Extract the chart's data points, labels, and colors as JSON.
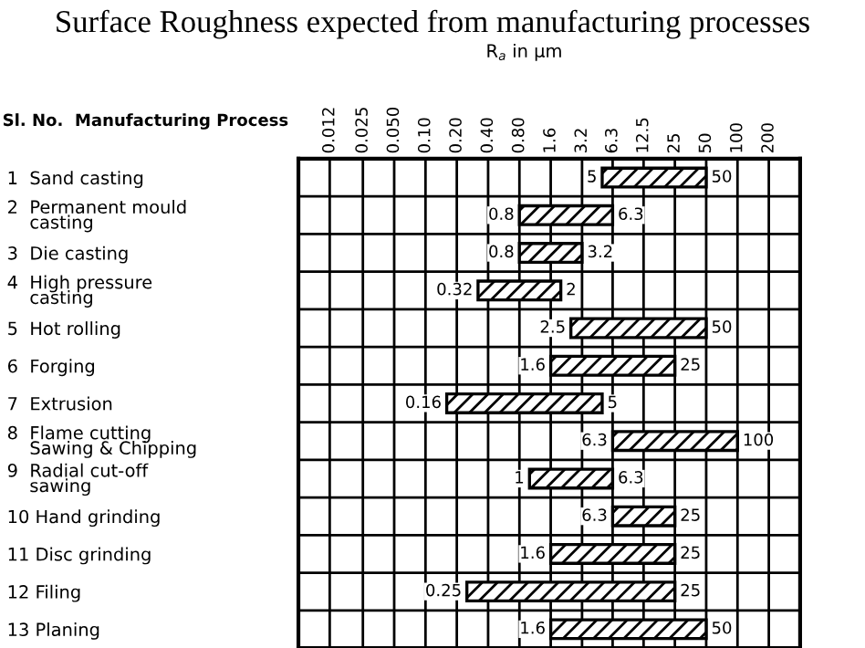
{
  "chart_data": {
    "type": "bar",
    "orientation": "horizontal",
    "title": "Surface Roughness expected from manufacturing processes",
    "ylabel": "Sl. No.  Manufacturing Process",
    "categories": [
      "1  Sand casting",
      "2  Permanent mould\n    casting",
      "3  Die casting",
      "4  High pressure\n    casting",
      "5  Hot rolling",
      "6  Forging",
      "7  Extrusion",
      "8  Flame cutting\n    Sawing & Chipping",
      "9  Radial cut-off\n    sawing",
      "10 Hand grinding",
      "11 Disc grinding",
      "12 Filing",
      "13 Planing"
    ],
    "base": [
      5,
      0.8,
      0.8,
      0.32,
      2.5,
      1.6,
      0.16,
      6.3,
      1,
      6.3,
      1.6,
      0.25,
      1.6
    ],
    "values": [
      45,
      5.5,
      2.4,
      1.68,
      47.5,
      23.4,
      4.84,
      93.7,
      5.3,
      18.7,
      23.4,
      24.75,
      48.4
    ],
    "color": "#000000",
    "log": "x",
    "xlim": [
      0.006,
      400
    ],
    "xticks": [
      0.012,
      0.025,
      {
        "value": 0.05,
        "label": "0.050"
      },
      {
        "value": 0.1,
        "label": "0.10"
      },
      {
        "value": 0.2,
        "label": "0.20"
      },
      {
        "value": 0.4,
        "label": "0.40"
      },
      {
        "value": 0.8,
        "label": "0.80"
      },
      1.6,
      3.2,
      6.3,
      12.5,
      25,
      50,
      100,
      200
    ],
    "grid": true,
    "annotations": [
      "R$_{a}$ in μm",
      {
        "text": "5",
        "x": 5,
        "y": "1  Sand casting"
      },
      {
        "text": "50",
        "x": 50,
        "y": "1  Sand casting"
      },
      {
        "text": "0.8",
        "x": 0.8,
        "y": "2  Permanent mould\n    casting"
      },
      {
        "text": "6.3",
        "x": 6.3,
        "y": "2  Permanent mould\n    casting"
      },
      {
        "text": "0.8",
        "x": 0.8,
        "y": "3  Die casting"
      },
      {
        "text": "3.2",
        "x": 3.2,
        "y": "3  Die casting"
      },
      {
        "text": "0.32",
        "x": 0.32,
        "y": "4  High pressure\n    casting"
      },
      {
        "text": "2",
        "x": 2,
        "y": "4  High pressure\n    casting"
      },
      {
        "text": "2.5",
        "x": 2.5,
        "y": "5  Hot rolling"
      },
      {
        "text": "50",
        "x": 50,
        "y": "5  Hot rolling"
      },
      {
        "text": "1.6",
        "x": 1.6,
        "y": "6  Forging"
      },
      {
        "text": "25",
        "x": 25,
        "y": "6  Forging"
      },
      {
        "text": "0.16",
        "x": 0.16,
        "y": "7  Extrusion"
      },
      {
        "text": "5",
        "x": 5,
        "y": "7  Extrusion"
      },
      {
        "text": "6.3",
        "x": 6.3,
        "y": "8  Flame cutting\n    Sawing & Chipping"
      },
      {
        "text": "100",
        "x": 100,
        "y": "8  Flame cutting\n    Sawing & Chipping"
      },
      {
        "text": "1",
        "x": 1,
        "y": "9  Radial cut-off\n    sawing"
      },
      {
        "text": "6.3",
        "x": 6.3,
        "y": "9  Radial cut-off\n    sawing"
      },
      {
        "text": "6.3",
        "x": 6.3,
        "y": "10 Hand grinding"
      },
      {
        "text": "25",
        "x": 25,
        "y": "10 Hand grinding"
      },
      {
        "text": "1.6",
        "x": 1.6,
        "y": "11 Disc grinding"
      },
      {
        "text": "25",
        "x": 25,
        "y": "11 Disc grinding"
      },
      {
        "text": "0.25",
        "x": 0.25,
        "y": "12 Filing"
      },
      {
        "text": "25",
        "x": 25,
        "y": "12 Filing"
      },
      {
        "text": "1.6",
        "x": 1.6,
        "y": "13 Planing"
      },
      {
        "text": "50",
        "x": 50,
        "y": "13 Planing"
      }
    ]
  }
}
